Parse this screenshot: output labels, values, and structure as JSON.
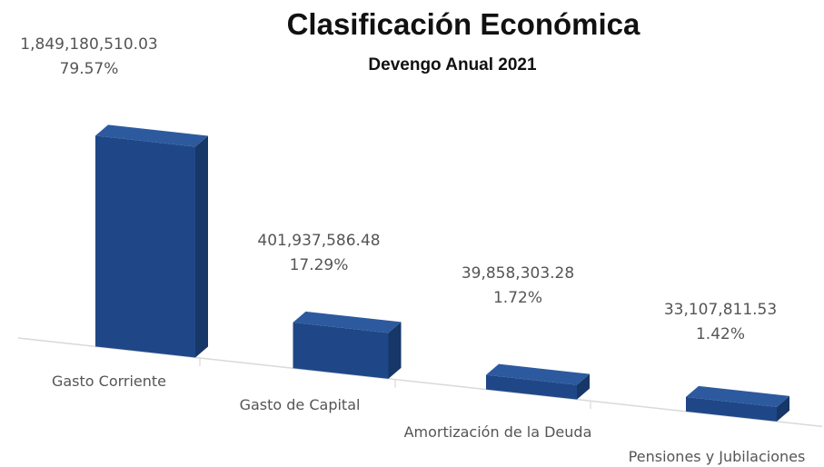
{
  "chart_data": {
    "type": "bar",
    "title": "Clasificación  Económica",
    "subtitle": "Devengo Anual 2021",
    "categories": [
      "Gasto Corriente",
      "Gasto de Capital",
      "Amortización de la Deuda",
      "Pensiones y Jubilaciones"
    ],
    "values": [
      1849180510.03,
      401937586.48,
      39858303.28,
      33107811.53
    ],
    "value_labels": [
      "1,849,180,510.03",
      "401,937,586.48",
      "39,858,303.28",
      "33,107,811.53"
    ],
    "percent_labels": [
      "79.57%",
      "17.29%",
      "1.72%",
      "1.42%"
    ],
    "grid": false,
    "legend": "none",
    "colors": {
      "bar_front": "#1f4788",
      "bar_top": "#2d5a9e",
      "bar_side": "#163767",
      "axis": "#d9d9d9",
      "label": "#555555"
    }
  }
}
